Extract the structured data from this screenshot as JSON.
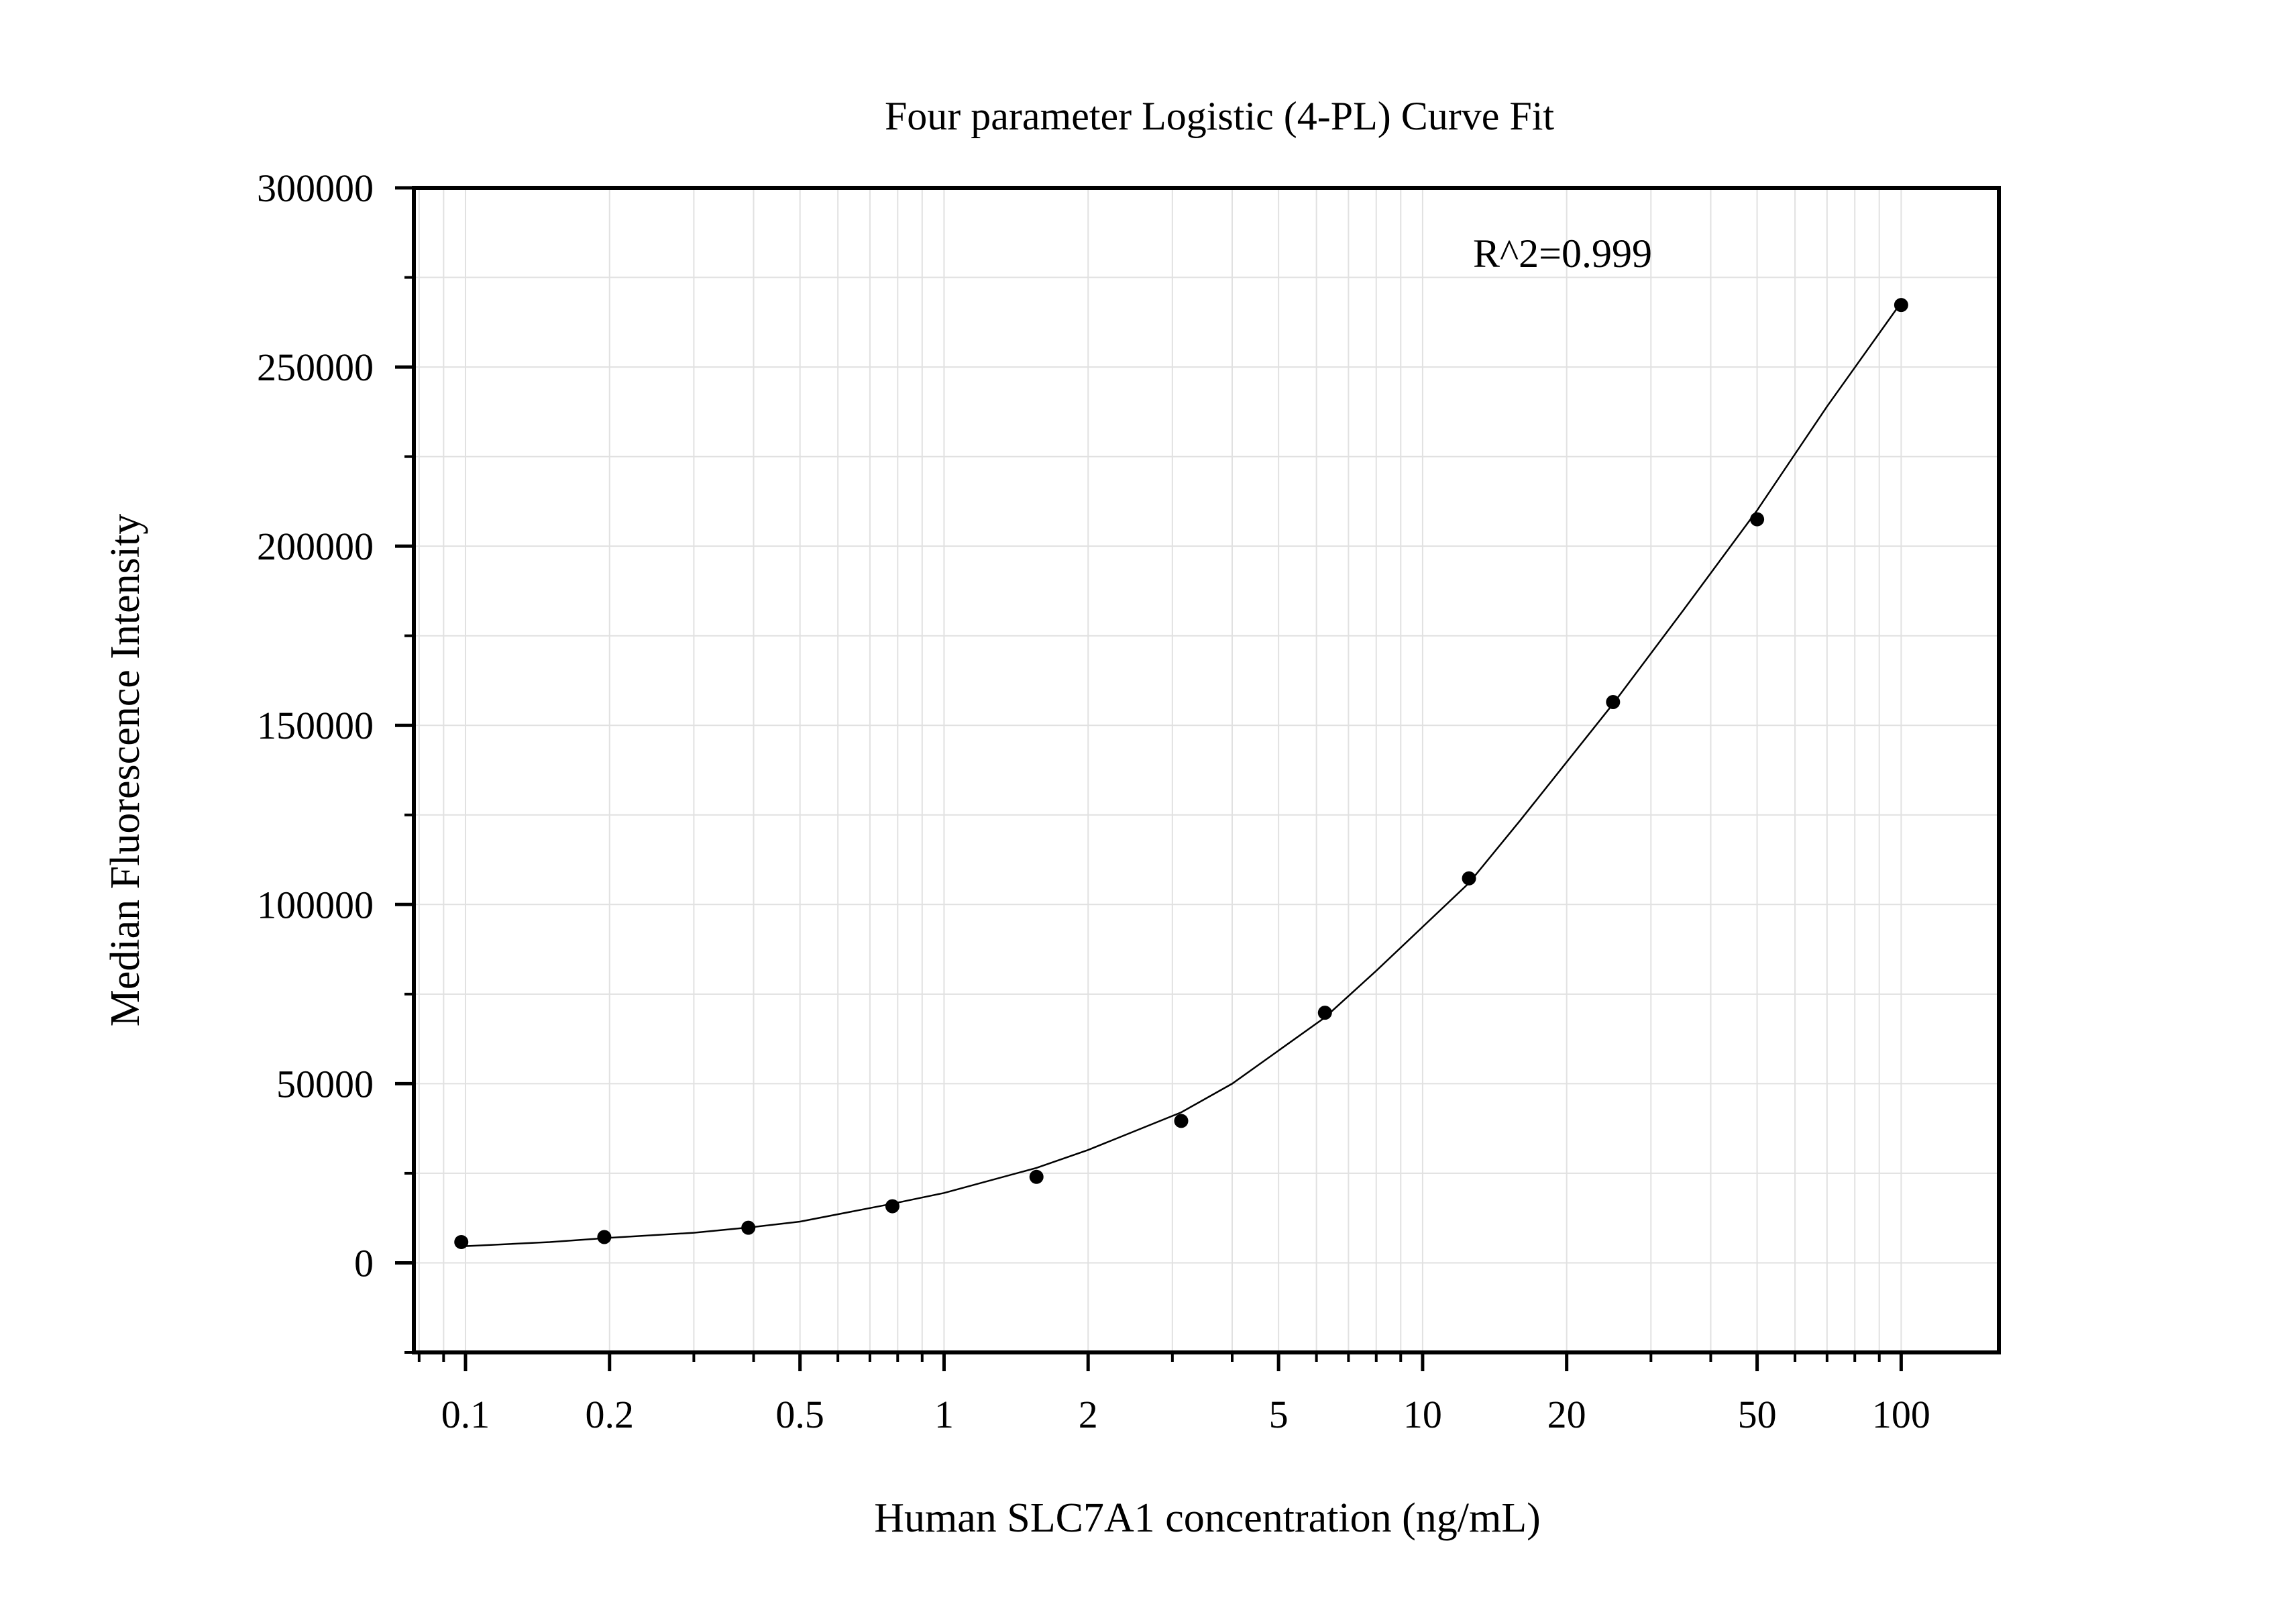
{
  "chart_data": {
    "type": "scatter",
    "title": "Four parameter Logistic (4-PL) Curve Fit",
    "xlabel": "Human SLC7A1 concentration (ng/mL)",
    "ylabel": "Median Fluorescence Intensity",
    "x_scale": "log",
    "xlim": [
      0.078,
      160
    ],
    "ylim": [
      -25000,
      300000
    ],
    "x_ticks": [
      0.1,
      0.2,
      0.5,
      1,
      2,
      5,
      10,
      20,
      50,
      100
    ],
    "x_tick_labels": [
      "0.1",
      "0.2",
      "0.5",
      "1",
      "2",
      "5",
      "10",
      "20",
      "50",
      "100"
    ],
    "y_ticks": [
      0,
      50000,
      100000,
      150000,
      200000,
      250000,
      300000
    ],
    "y_tick_labels": [
      "0",
      "50000",
      "100000",
      "150000",
      "200000",
      "250000",
      "300000"
    ],
    "grid": true,
    "annotation": "R^2=0.999",
    "series": [
      {
        "type": "scatter",
        "x": [
          0.098,
          0.195,
          0.39,
          0.78,
          1.56,
          3.13,
          6.25,
          12.5,
          25,
          50,
          100
        ],
        "y": [
          5800,
          7200,
          9800,
          15800,
          24000,
          39600,
          69800,
          107300,
          156500,
          207500,
          267300
        ]
      },
      {
        "type": "line",
        "x": [
          0.098,
          0.15,
          0.2,
          0.3,
          0.4,
          0.5,
          0.78,
          1,
          1.56,
          2,
          3.13,
          4,
          6.25,
          8,
          12.5,
          16,
          25,
          35,
          50,
          70,
          100
        ],
        "y": [
          4600,
          5800,
          7000,
          8400,
          10000,
          11500,
          16500,
          19500,
          26500,
          31500,
          42000,
          50000,
          68500,
          81500,
          106000,
          123500,
          156000,
          182000,
          210000,
          239000,
          268000
        ]
      }
    ]
  },
  "colors": {
    "marker": "#000000",
    "line": "#000000",
    "grid": "#e1e1e1",
    "axis": "#000000",
    "background": "#ffffff"
  }
}
